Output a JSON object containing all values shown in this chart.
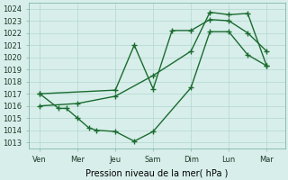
{
  "title": "",
  "xlabel": "Pression niveau de la mer( hPa )",
  "background_color": "#d8eeea",
  "grid_color": "#b0d8d0",
  "line_color": "#1a6b30",
  "xtick_labels": [
    "Ven",
    "Mer",
    "Jeu",
    "Sam",
    "Dim",
    "Lun",
    "Mar"
  ],
  "ylim": [
    1012.5,
    1024.5
  ],
  "yticks": [
    1013,
    1014,
    1015,
    1016,
    1017,
    1018,
    1019,
    1020,
    1021,
    1022,
    1023,
    1024
  ],
  "line1_x": [
    0,
    0.5,
    0.7,
    1.0,
    1.3,
    1.5,
    2.0,
    2.5,
    3.0,
    4.0,
    4.5,
    5.0,
    5.5,
    6.0
  ],
  "line1_y": [
    1017.0,
    1015.8,
    1015.8,
    1015.0,
    1014.2,
    1014.0,
    1013.9,
    1013.1,
    1013.9,
    1017.5,
    1022.1,
    1022.1,
    1020.2,
    1019.3
  ],
  "line2_x": [
    0,
    2.0,
    2.5,
    3.0,
    3.5,
    4.0,
    4.5,
    5.0,
    5.5,
    6.0
  ],
  "line2_y": [
    1017.0,
    1017.3,
    1021.0,
    1017.4,
    1022.2,
    1022.2,
    1023.1,
    1023.0,
    1022.0,
    1020.5
  ],
  "line3_x": [
    0,
    1.0,
    2.0,
    3.0,
    4.0,
    4.5,
    5.0,
    5.5,
    6.0
  ],
  "line3_y": [
    1016.0,
    1016.2,
    1016.8,
    1018.5,
    1020.5,
    1023.7,
    1023.5,
    1023.6,
    1019.3
  ],
  "marker": "+",
  "marker_size": 4,
  "linewidth": 1.0,
  "font_size_label": 7,
  "font_size_tick": 6
}
